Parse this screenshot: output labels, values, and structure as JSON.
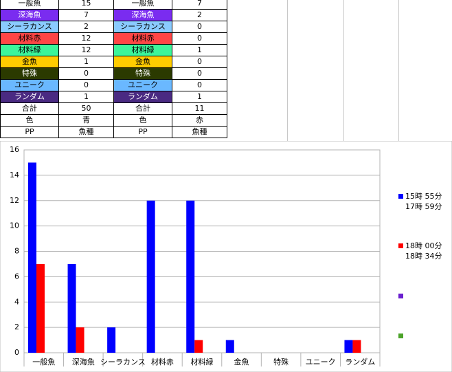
{
  "table": {
    "rows": [
      [
        "一般魚",
        15,
        "一般魚",
        7
      ],
      [
        "深海魚",
        7,
        "深海魚",
        2
      ],
      [
        "シーラカンス",
        2,
        "シーラカンス",
        0
      ],
      [
        "材料赤",
        12,
        "材料赤",
        0
      ],
      [
        "材料緑",
        12,
        "材料緑",
        1
      ],
      [
        "金魚",
        1,
        "金魚",
        0
      ],
      [
        "特殊",
        0,
        "特殊",
        0
      ],
      [
        "ユニーク",
        0,
        "ユニーク",
        0
      ],
      [
        "ランダム",
        1,
        "ランダム",
        1
      ],
      [
        "合計",
        50,
        "合計",
        11
      ],
      [
        "色",
        "青",
        "色",
        "赤"
      ],
      [
        "PP",
        "魚種",
        "PP",
        "魚種"
      ]
    ]
  },
  "chart_data": {
    "type": "bar",
    "categories": [
      "一般魚",
      "深海魚",
      "シーラカンス",
      "材料赤",
      "材料緑",
      "金魚",
      "特殊",
      "ユニーク",
      "ランダム"
    ],
    "series": [
      {
        "name": "15時 55分\n17時 59分",
        "color": "#0000ff",
        "values": [
          15,
          7,
          2,
          12,
          12,
          1,
          0,
          0,
          1
        ]
      },
      {
        "name": "18時 00分\n18時 34分",
        "color": "#ff0000",
        "values": [
          7,
          2,
          0,
          0,
          1,
          0,
          0,
          0,
          1
        ]
      },
      {
        "color": "#6a1fcf",
        "values": [
          null,
          null,
          null,
          null,
          null,
          null,
          null,
          null,
          null
        ]
      },
      {
        "color": "#4ca32a",
        "values": [
          null,
          null,
          null,
          null,
          null,
          null,
          null,
          null,
          null
        ]
      }
    ],
    "ylim": [
      0,
      16
    ],
    "yticks": [
      0,
      2,
      4,
      6,
      8,
      10,
      12,
      14,
      16
    ],
    "grid": true
  }
}
